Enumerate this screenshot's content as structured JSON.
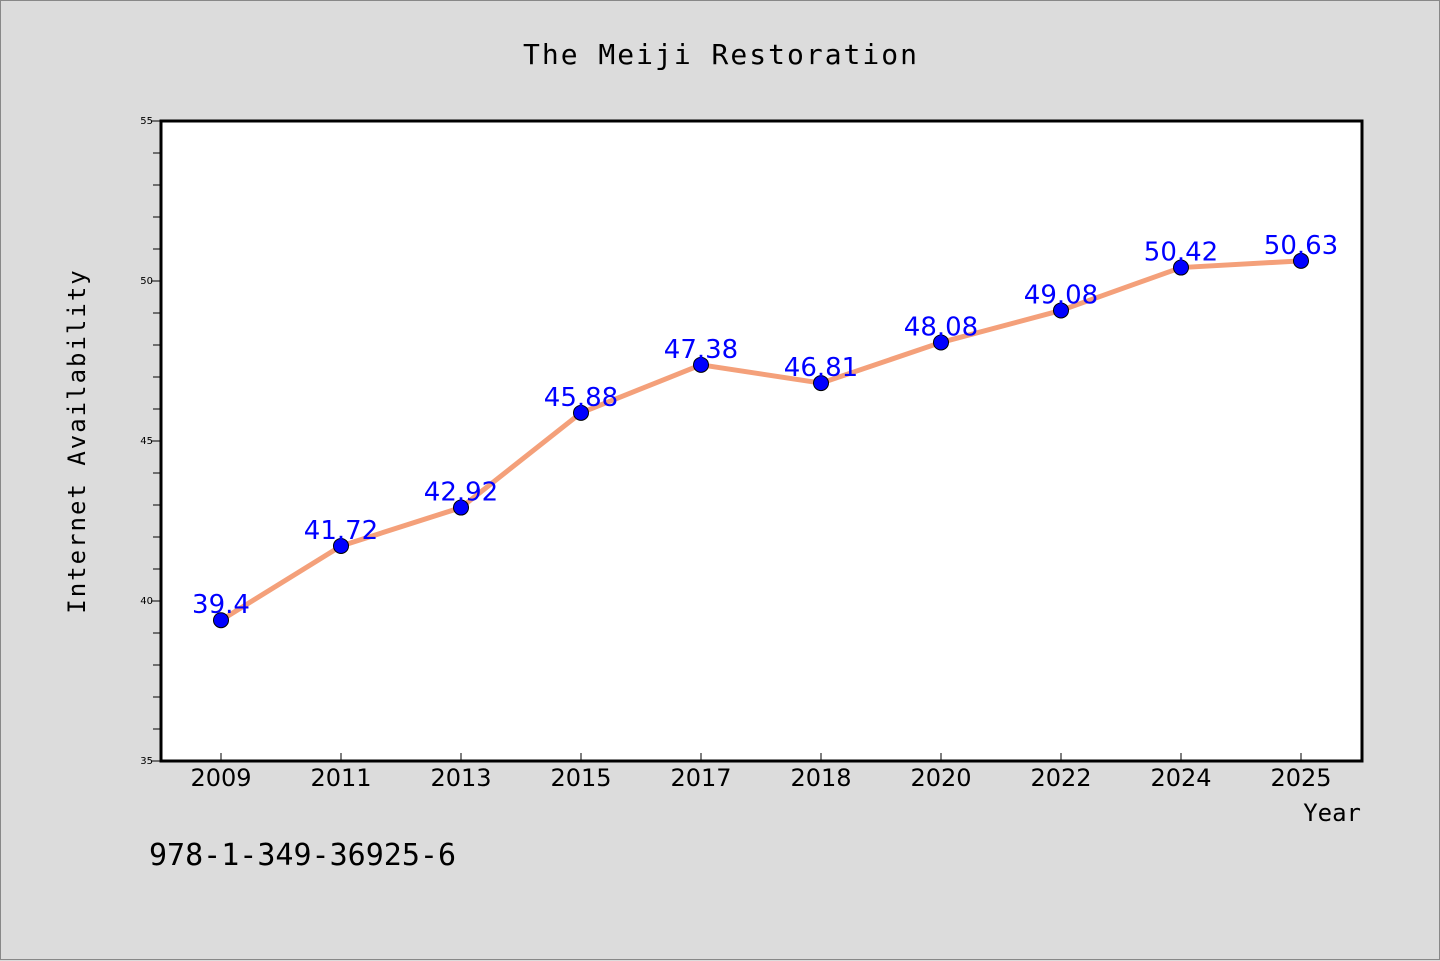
{
  "chart_data": {
    "type": "line",
    "title": "The Meiji Restoration",
    "xlabel": "Year",
    "ylabel": "Internet Availability",
    "categories": [
      "2009",
      "2011",
      "2013",
      "2015",
      "2017",
      "2018",
      "2020",
      "2022",
      "2024",
      "2025"
    ],
    "series": [
      {
        "values": [
          39.4,
          41.72,
          42.92,
          45.88,
          47.38,
          46.81,
          48.08,
          49.08,
          50.42,
          50.63
        ],
        "labels": [
          "39.4",
          "41.72",
          "42.92",
          "45.88",
          "47.38",
          "46.81",
          "48.08",
          "49.08",
          "50.42",
          "50.63"
        ]
      }
    ],
    "ylim": [
      35,
      55
    ],
    "yticks": [
      "35",
      "40",
      "45",
      "50",
      "55"
    ],
    "grid": false,
    "colors": {
      "line": "#f4a07a",
      "marker": "#0000ff",
      "label": "#0000ff",
      "background": "#dcdcdc",
      "plot": "#ffffff"
    }
  },
  "footer": {
    "isbn": "978-1-349-36925-6"
  }
}
